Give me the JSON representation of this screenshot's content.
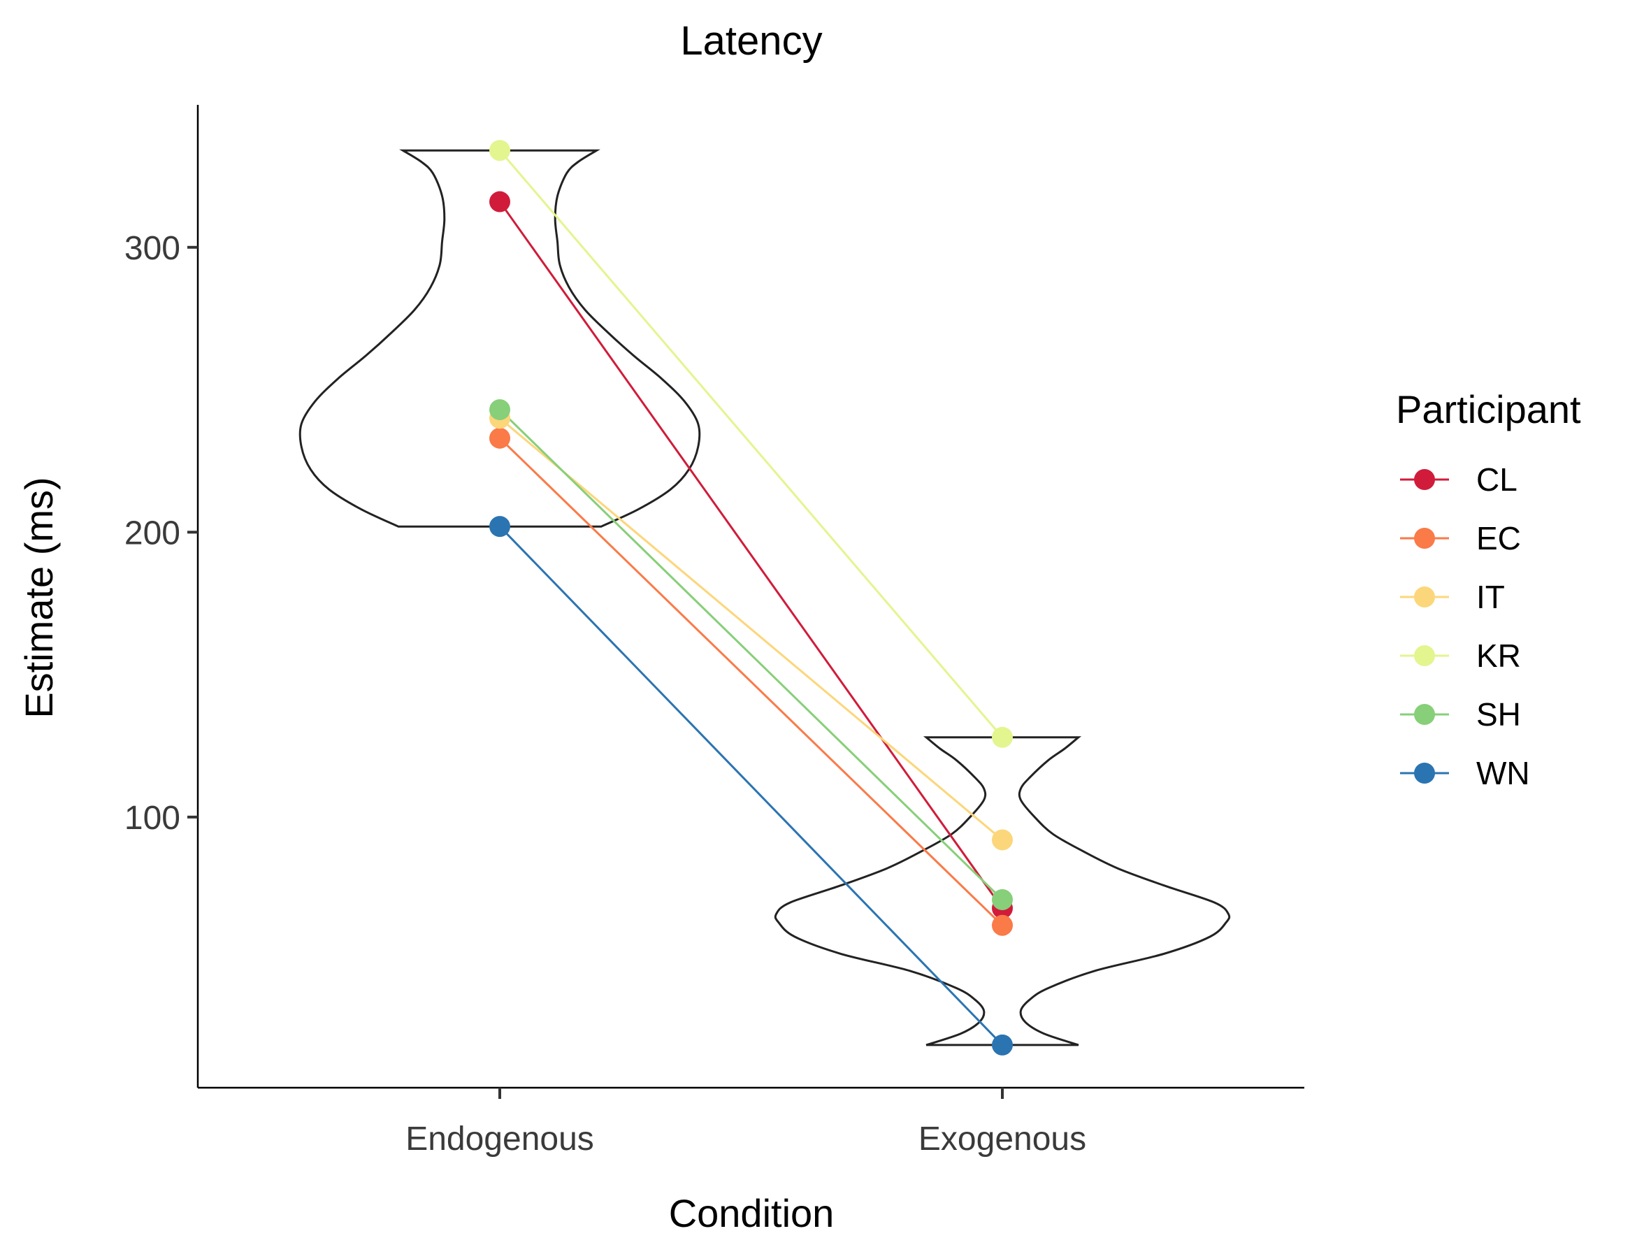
{
  "chart_data": {
    "type": "violin",
    "title": "Latency",
    "xlabel": "Condition",
    "ylabel": "Estimate (ms)",
    "categories": [
      "Endogenous",
      "Exogenous"
    ],
    "ylim": [
      5,
      350
    ],
    "yticks": [
      100,
      200,
      300
    ],
    "grid": false,
    "legend": {
      "title": "Participant",
      "placement": "right"
    },
    "series": [
      {
        "name": "CL",
        "color": "#d01c3a",
        "values": [
          316,
          68
        ]
      },
      {
        "name": "EC",
        "color": "#fa7a48",
        "values": [
          233,
          62
        ]
      },
      {
        "name": "IT",
        "color": "#fcd67a",
        "values": [
          240,
          92
        ]
      },
      {
        "name": "KR",
        "color": "#e3f58f",
        "values": [
          334,
          128
        ]
      },
      {
        "name": "SH",
        "color": "#87cf79",
        "values": [
          243,
          71
        ]
      },
      {
        "name": "WN",
        "color": "#2b74b2",
        "values": [
          202,
          20
        ]
      }
    ],
    "violins": [
      {
        "category": "Endogenous",
        "profile": [
          [
            202,
            0.44
          ],
          [
            208,
            0.6
          ],
          [
            215,
            0.74
          ],
          [
            222,
            0.82
          ],
          [
            230,
            0.86
          ],
          [
            238,
            0.86
          ],
          [
            246,
            0.8
          ],
          [
            254,
            0.7
          ],
          [
            262,
            0.58
          ],
          [
            270,
            0.47
          ],
          [
            278,
            0.37
          ],
          [
            286,
            0.3
          ],
          [
            294,
            0.26
          ],
          [
            302,
            0.25
          ],
          [
            310,
            0.24
          ],
          [
            318,
            0.25
          ],
          [
            326,
            0.29
          ],
          [
            330,
            0.34
          ],
          [
            334,
            0.42
          ]
        ]
      },
      {
        "category": "Exogenous",
        "profile": [
          [
            20,
            0.33
          ],
          [
            24,
            0.18
          ],
          [
            28,
            0.1
          ],
          [
            32,
            0.08
          ],
          [
            36,
            0.12
          ],
          [
            40,
            0.2
          ],
          [
            46,
            0.4
          ],
          [
            52,
            0.7
          ],
          [
            58,
            0.9
          ],
          [
            63,
            0.97
          ],
          [
            66,
            0.98
          ],
          [
            70,
            0.92
          ],
          [
            76,
            0.7
          ],
          [
            82,
            0.5
          ],
          [
            88,
            0.35
          ],
          [
            94,
            0.22
          ],
          [
            100,
            0.14
          ],
          [
            106,
            0.08
          ],
          [
            110,
            0.08
          ],
          [
            114,
            0.12
          ],
          [
            120,
            0.2
          ],
          [
            124,
            0.27
          ],
          [
            128,
            0.33
          ]
        ]
      }
    ]
  }
}
